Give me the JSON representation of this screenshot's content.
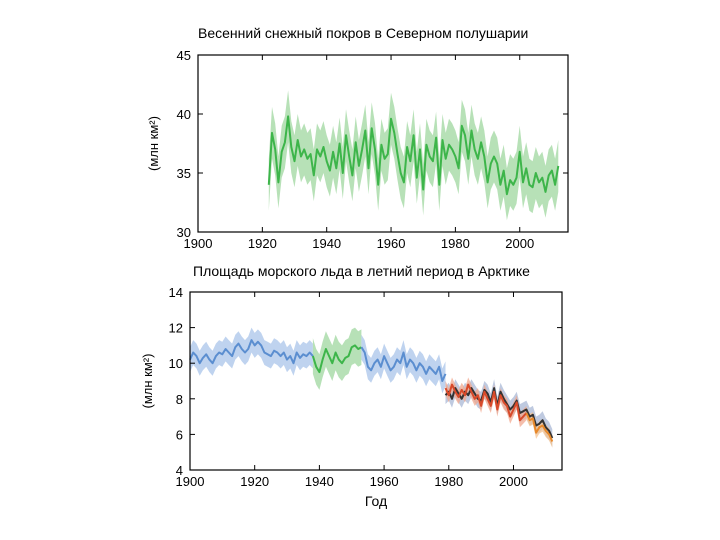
{
  "chart_data": [
    {
      "type": "line",
      "title": "Весенний снежный покров в Северном полушарии",
      "xlabel": "",
      "ylabel": "(млн км²)",
      "xlim": [
        1900,
        2015
      ],
      "ylim": [
        30,
        45
      ],
      "xticks": [
        1900,
        1920,
        1940,
        1960,
        1980,
        2000
      ],
      "yticks": [
        30,
        35,
        40,
        45
      ],
      "series": [
        {
          "name": "snow_cover",
          "color": "#3db54a",
          "band_color": "#9fd79f",
          "uncertainty": 2.2,
          "x": [
            1922,
            1923,
            1924,
            1925,
            1926,
            1927,
            1928,
            1929,
            1930,
            1931,
            1932,
            1933,
            1934,
            1935,
            1936,
            1937,
            1938,
            1939,
            1940,
            1941,
            1942,
            1943,
            1944,
            1945,
            1946,
            1947,
            1948,
            1949,
            1950,
            1951,
            1952,
            1953,
            1954,
            1955,
            1956,
            1957,
            1958,
            1959,
            1960,
            1961,
            1962,
            1963,
            1964,
            1965,
            1966,
            1967,
            1968,
            1969,
            1970,
            1971,
            1972,
            1973,
            1974,
            1975,
            1976,
            1977,
            1978,
            1979,
            1980,
            1981,
            1982,
            1983,
            1984,
            1985,
            1986,
            1987,
            1988,
            1989,
            1990,
            1991,
            1992,
            1993,
            1994,
            1995,
            1996,
            1997,
            1998,
            1999,
            2000,
            2001,
            2002,
            2003,
            2004,
            2005,
            2006,
            2007,
            2008,
            2009,
            2010,
            2011,
            2012
          ],
          "values": [
            34.0,
            38.4,
            37.0,
            34.2,
            36.8,
            37.6,
            39.8,
            37.2,
            36.0,
            37.8,
            36.4,
            37.0,
            36.2,
            36.6,
            34.8,
            37.0,
            36.4,
            37.2,
            36.0,
            35.2,
            36.8,
            35.4,
            37.5,
            35.0,
            38.2,
            36.4,
            34.8,
            37.6,
            35.6,
            37.0,
            38.6,
            35.4,
            38.8,
            37.0,
            34.0,
            37.4,
            36.2,
            36.6,
            39.6,
            38.4,
            36.6,
            35.0,
            34.2,
            37.2,
            36.0,
            38.2,
            34.6,
            37.0,
            33.6,
            37.4,
            36.4,
            36.0,
            38.0,
            34.0,
            37.8,
            36.2,
            37.4,
            37.0,
            36.4,
            35.4,
            39.0,
            38.2,
            36.2,
            38.6,
            37.0,
            36.2,
            37.6,
            36.4,
            34.2,
            35.8,
            36.4,
            35.8,
            34.0,
            35.2,
            33.2,
            34.4,
            34.0,
            34.6,
            36.8,
            34.2,
            35.4,
            34.0,
            33.8,
            35.0,
            34.2,
            34.6,
            33.4,
            34.8,
            35.2,
            34.0,
            35.6
          ]
        }
      ]
    },
    {
      "type": "line",
      "title": "Площадь морского льда в летний период в Арктике",
      "xlabel": "Год",
      "ylabel": "(млн км²)",
      "xlim": [
        1900,
        2015
      ],
      "ylim": [
        4,
        14
      ],
      "xticks": [
        1900,
        1920,
        1940,
        1960,
        1980,
        2000
      ],
      "yticks": [
        4,
        6,
        8,
        10,
        12,
        14
      ],
      "series": [
        {
          "name": "reconstruction_blue",
          "color": "#5b8ed0",
          "band_color": "#a9c4e9",
          "uncertainty": 0.7,
          "x": [
            1900,
            1901,
            1902,
            1903,
            1904,
            1905,
            1906,
            1907,
            1908,
            1909,
            1910,
            1911,
            1912,
            1913,
            1914,
            1915,
            1916,
            1917,
            1918,
            1919,
            1920,
            1921,
            1922,
            1923,
            1924,
            1925,
            1926,
            1927,
            1928,
            1929,
            1930,
            1931,
            1932,
            1933,
            1934,
            1935,
            1936,
            1937,
            1938
          ],
          "values": [
            10.2,
            10.6,
            10.4,
            10.0,
            10.3,
            10.5,
            10.2,
            10.0,
            10.4,
            10.6,
            10.5,
            10.8,
            10.6,
            10.4,
            10.9,
            11.1,
            10.8,
            10.6,
            10.8,
            11.3,
            11.0,
            11.2,
            11.0,
            10.6,
            10.5,
            10.4,
            10.7,
            10.6,
            10.4,
            10.6,
            10.2,
            10.4,
            10.0,
            10.6,
            10.3,
            10.5,
            10.4,
            10.6,
            10.4
          ]
        },
        {
          "name": "reconstruction_green_1",
          "color": "#3db54a",
          "band_color": "#9fd79f",
          "uncertainty": 1.0,
          "x": [
            1938,
            1939,
            1940,
            1941,
            1942,
            1943,
            1944,
            1945,
            1946,
            1947,
            1948,
            1949,
            1950,
            1951,
            1952,
            1953
          ],
          "values": [
            10.4,
            9.8,
            9.5,
            10.2,
            10.8,
            10.4,
            10.0,
            10.6,
            10.2,
            10.0,
            10.3,
            10.4,
            10.9,
            11.0,
            10.8,
            10.9
          ]
        },
        {
          "name": "reconstruction_blue_2",
          "color": "#5b8ed0",
          "band_color": "#a9c4e9",
          "uncertainty": 0.7,
          "x": [
            1953,
            1954,
            1955,
            1956,
            1957,
            1958,
            1959,
            1960,
            1961,
            1962,
            1963,
            1964,
            1965,
            1966,
            1967,
            1968,
            1969,
            1970,
            1971,
            1972,
            1973,
            1974,
            1975,
            1976,
            1977,
            1978,
            1979
          ],
          "values": [
            10.9,
            10.6,
            9.8,
            9.6,
            10.0,
            10.2,
            9.8,
            10.4,
            10.0,
            9.6,
            9.8,
            10.2,
            10.0,
            10.6,
            9.8,
            10.2,
            10.0,
            9.6,
            10.0,
            9.8,
            9.4,
            9.8,
            9.6,
            9.4,
            9.8,
            9.0,
            9.4
          ]
        },
        {
          "name": "observations_black",
          "color": "#333333",
          "band_color": "#aab8d6",
          "uncertainty": 0.5,
          "x": [
            1979,
            1980,
            1981,
            1982,
            1983,
            1984,
            1985,
            1986,
            1987,
            1988,
            1989,
            1990,
            1991,
            1992,
            1993,
            1994,
            1995,
            1996,
            1997,
            1998,
            1999,
            2000,
            2001,
            2002,
            2003,
            2004,
            2005,
            2006,
            2007,
            2008,
            2009,
            2010,
            2011,
            2012
          ],
          "values": [
            8.2,
            8.4,
            8.0,
            8.6,
            8.3,
            8.0,
            8.4,
            8.2,
            8.6,
            8.3,
            8.0,
            7.9,
            8.5,
            8.3,
            7.8,
            8.6,
            7.6,
            8.4,
            8.0,
            7.7,
            7.4,
            7.6,
            7.9,
            7.2,
            7.3,
            7.4,
            7.0,
            7.1,
            6.5,
            6.6,
            6.8,
            6.4,
            6.2,
            5.8
          ]
        },
        {
          "name": "observations_red",
          "color": "#d84a2a",
          "band_color": "#f2a88f",
          "uncertainty": 0.4,
          "x": [
            1979,
            1980,
            1981,
            1982,
            1983,
            1984,
            1985,
            1986,
            1987,
            1988,
            1989,
            1990,
            1991,
            1992,
            1993,
            1994,
            1995,
            1996,
            1997,
            1998,
            1999,
            2000,
            2001,
            2002,
            2003,
            2004
          ],
          "values": [
            8.6,
            8.2,
            8.8,
            8.4,
            8.1,
            8.5,
            8.2,
            8.8,
            8.4,
            8.0,
            8.2,
            7.6,
            8.4,
            8.0,
            7.6,
            8.4,
            7.4,
            8.2,
            7.8,
            7.6,
            7.0,
            7.4,
            7.8,
            6.8,
            7.0,
            7.2
          ]
        },
        {
          "name": "observations_orange",
          "color": "#e8892a",
          "band_color": "#f6c390",
          "uncertainty": 0.35,
          "x": [
            2004,
            2005,
            2006,
            2007,
            2008,
            2009,
            2010,
            2011,
            2012
          ],
          "values": [
            7.2,
            6.8,
            6.9,
            6.1,
            6.4,
            6.5,
            6.2,
            6.0,
            5.6
          ]
        }
      ]
    }
  ]
}
